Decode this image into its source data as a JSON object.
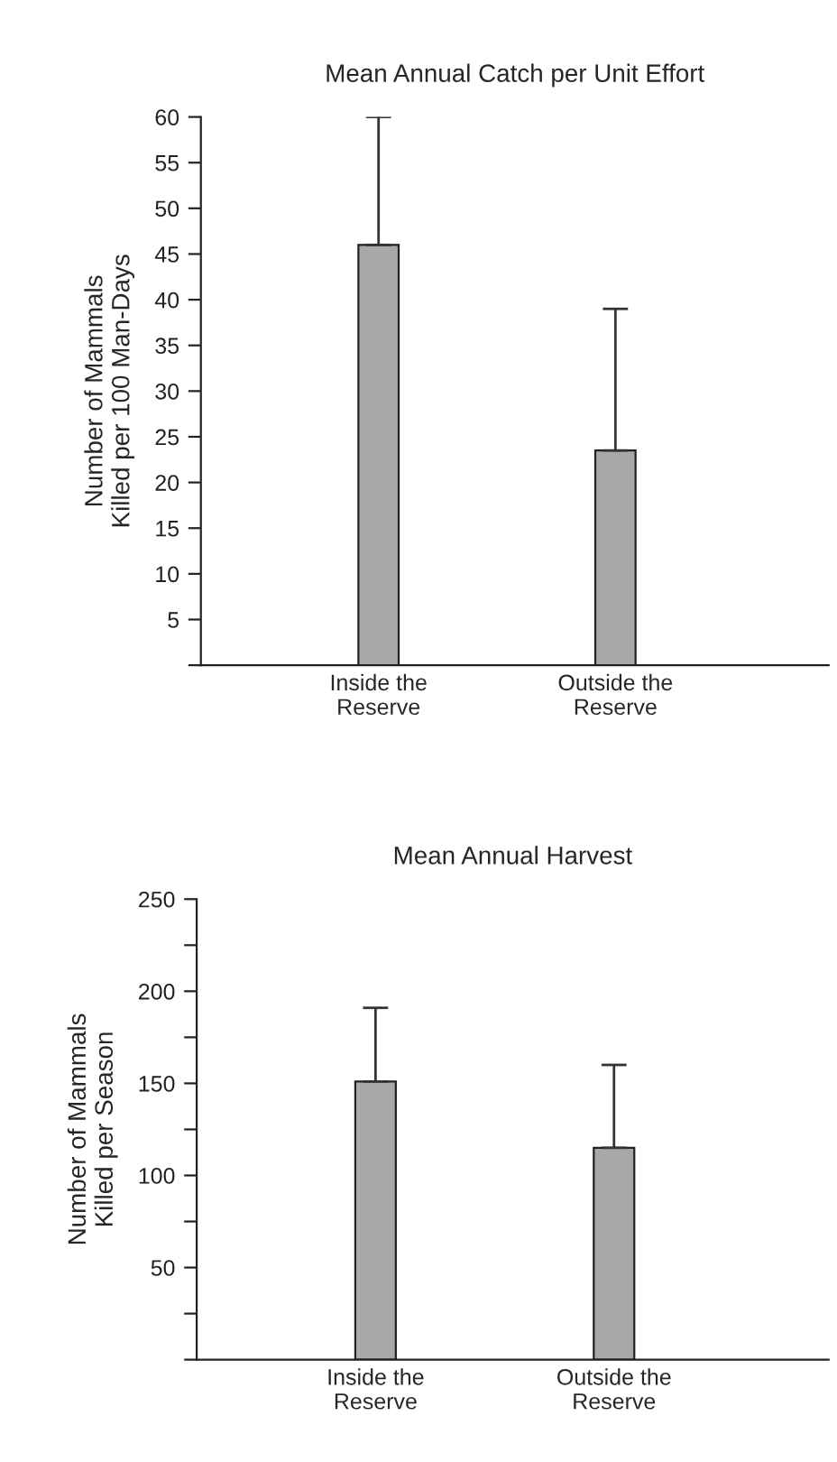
{
  "chart_data": [
    {
      "type": "bar",
      "title": "Mean Annual Catch per Unit Effort",
      "ylabel": "Number of Mammals\nKilled per 100 Man-Days",
      "categories": [
        "Inside the\nReserve",
        "Outside the\nReserve"
      ],
      "values": [
        46,
        23.5
      ],
      "errors": [
        [
          46,
          60
        ],
        [
          23.5,
          39
        ]
      ],
      "color": "#a8a8a8",
      "ylim": [
        0,
        60
      ],
      "yticks": [
        {
          "value": 0,
          "label": null
        },
        5,
        10,
        15,
        20,
        25,
        30,
        35,
        40,
        45,
        50,
        55,
        60
      ],
      "grid": false,
      "legend": false
    },
    {
      "type": "bar",
      "title": "Mean Annual Harvest",
      "ylabel": "Number of Mammals\nKilled per Season",
      "categories": [
        "Inside the\nReserve",
        "Outside the\nReserve"
      ],
      "values": [
        151,
        115
      ],
      "errors": [
        [
          151,
          191
        ],
        [
          115,
          160
        ]
      ],
      "color": "#a8a8a8",
      "ylim": [
        0,
        250
      ],
      "yticks": [
        {
          "value": 0,
          "label": null
        },
        {
          "value": 25,
          "label": null
        },
        50,
        {
          "value": 75,
          "label": null
        },
        100,
        {
          "value": 125,
          "label": null
        },
        150,
        {
          "value": 175,
          "label": null
        },
        200,
        {
          "value": 225,
          "label": null
        },
        250
      ],
      "grid": false,
      "legend": false
    }
  ]
}
